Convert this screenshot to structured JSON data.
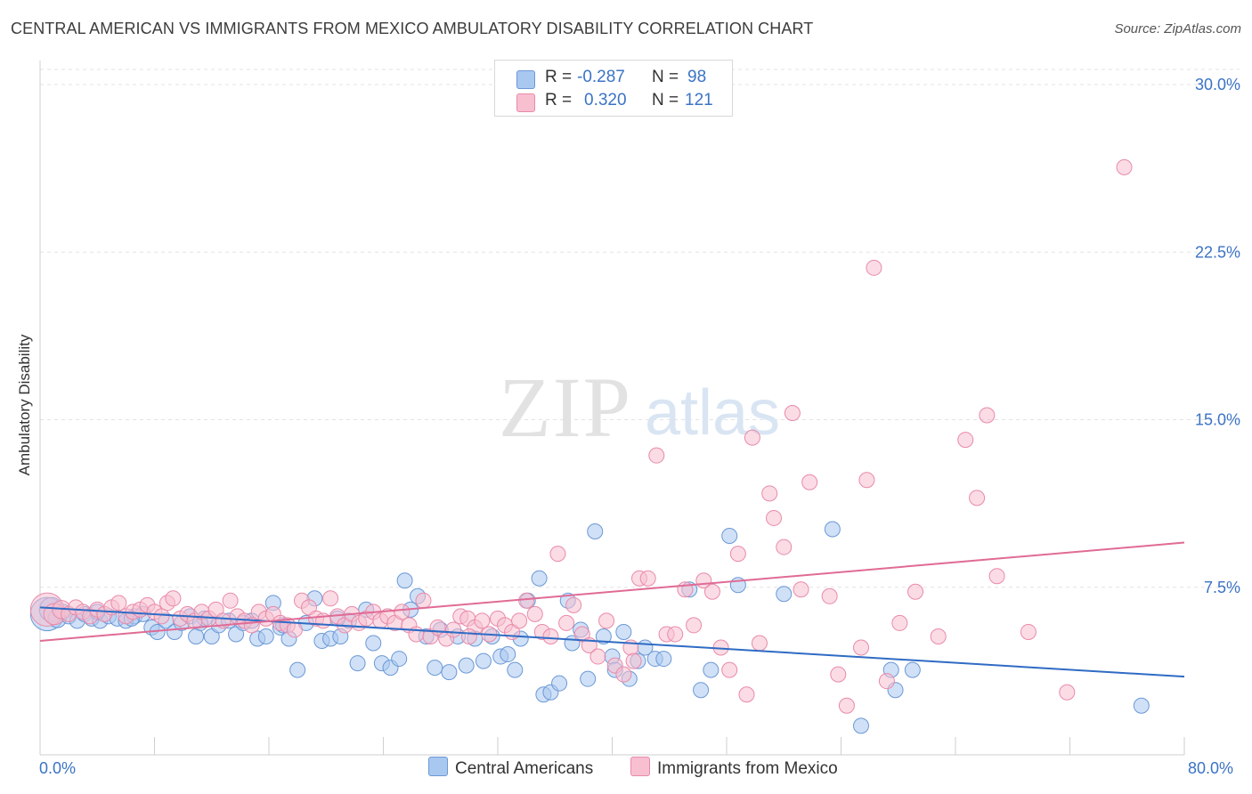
{
  "title": "CENTRAL AMERICAN VS IMMIGRANTS FROM MEXICO AMBULATORY DISABILITY CORRELATION CHART",
  "source": "Source: ZipAtlas.com",
  "watermark": {
    "zip": "ZIP",
    "atlas": "atlas"
  },
  "legend_top": {
    "rows": [
      {
        "r_label": "R =",
        "r_value": "-0.287",
        "n_label": "N =",
        "n_value": "98",
        "color": "#a9c8f0",
        "border": "#6b98d6"
      },
      {
        "r_label": "R =",
        "r_value": "0.320",
        "n_label": "N =",
        "n_value": "121",
        "color": "#f8bfd0",
        "border": "#e98aa9"
      }
    ]
  },
  "legend_bottom": [
    {
      "label": "Central Americans",
      "color": "#a9c8f0",
      "border": "#6b98d6"
    },
    {
      "label": "Immigrants from Mexico",
      "color": "#f8bfd0",
      "border": "#e98aa9"
    }
  ],
  "chart_data": {
    "type": "scatter",
    "title": "CENTRAL AMERICAN VS IMMIGRANTS FROM MEXICO AMBULATORY DISABILITY CORRELATION CHART",
    "xlabel": "",
    "ylabel": "Ambulatory Disability",
    "xlim": [
      0,
      80
    ],
    "ylim": [
      0,
      30
    ],
    "x_tick_labels": [
      "0.0%",
      "80.0%"
    ],
    "y_ticks": [
      7.5,
      15.0,
      22.5,
      30.0
    ],
    "y_tick_labels": [
      "7.5%",
      "15.0%",
      "22.5%",
      "30.0%"
    ],
    "grid": "horizontal dashed",
    "legend_placement": "top-center and bottom",
    "series": [
      {
        "name": "Central Americans",
        "color": "#6b98d6",
        "fill": "#a9c8f0",
        "trend": {
          "x": [
            0,
            80
          ],
          "y": [
            6.6,
            3.5
          ]
        },
        "points": [
          [
            0.5,
            6.3,
            2.2
          ],
          [
            0.8,
            6.5,
            1.6
          ],
          [
            1.2,
            6.1,
            1.2
          ],
          [
            1.6,
            6.4,
            1
          ],
          [
            2.0,
            6.2,
            1
          ],
          [
            2.6,
            6.0,
            1
          ],
          [
            3.1,
            6.3,
            1
          ],
          [
            3.6,
            6.1,
            1
          ],
          [
            4.2,
            6.0,
            1
          ],
          [
            4.8,
            6.2,
            1
          ],
          [
            5.4,
            6.1,
            1
          ],
          [
            6.0,
            6.0,
            1
          ],
          [
            6.6,
            6.2,
            1
          ],
          [
            7.2,
            6.3,
            1
          ],
          [
            7.8,
            5.7,
            1
          ],
          [
            8.2,
            5.5,
            1
          ],
          [
            8.8,
            6.0,
            1
          ],
          [
            9.4,
            5.5,
            1
          ],
          [
            9.9,
            5.9,
            1
          ],
          [
            10.5,
            6.2,
            1
          ],
          [
            10.9,
            5.3,
            1
          ],
          [
            11.5,
            6.1,
            1
          ],
          [
            12.0,
            5.3,
            1
          ],
          [
            12.5,
            5.8,
            1
          ],
          [
            13.2,
            6.0,
            1
          ],
          [
            13.7,
            5.4,
            1
          ],
          [
            14.2,
            5.9,
            1
          ],
          [
            14.8,
            6.0,
            1
          ],
          [
            15.2,
            5.2,
            1
          ],
          [
            15.8,
            5.3,
            1
          ],
          [
            16.3,
            6.8,
            1
          ],
          [
            16.8,
            5.7,
            1
          ],
          [
            17.4,
            5.2,
            1
          ],
          [
            18.0,
            3.8,
            1
          ],
          [
            18.6,
            5.9,
            1
          ],
          [
            19.2,
            7.0,
            1
          ],
          [
            19.7,
            5.1,
            1
          ],
          [
            20.3,
            5.2,
            1
          ],
          [
            21.0,
            5.3,
            1
          ],
          [
            21.6,
            6.0,
            1
          ],
          [
            22.2,
            4.1,
            1
          ],
          [
            22.8,
            6.5,
            1
          ],
          [
            23.3,
            5.0,
            1
          ],
          [
            23.9,
            4.1,
            1
          ],
          [
            24.5,
            3.9,
            1
          ],
          [
            25.1,
            4.3,
            1
          ],
          [
            25.5,
            7.8,
            1
          ],
          [
            25.9,
            6.5,
            1
          ],
          [
            26.4,
            7.1,
            1
          ],
          [
            27.0,
            5.3,
            1
          ],
          [
            27.6,
            3.9,
            1
          ],
          [
            28.0,
            5.6,
            1
          ],
          [
            28.6,
            3.7,
            1
          ],
          [
            29.2,
            5.3,
            1
          ],
          [
            29.8,
            4.0,
            1
          ],
          [
            30.4,
            5.2,
            1
          ],
          [
            31.0,
            4.2,
            1
          ],
          [
            31.6,
            5.3,
            1
          ],
          [
            32.2,
            4.4,
            1
          ],
          [
            32.7,
            4.5,
            1
          ],
          [
            33.2,
            3.8,
            1
          ],
          [
            33.6,
            5.2,
            1
          ],
          [
            34.1,
            6.9,
            1
          ],
          [
            34.9,
            7.9,
            1
          ],
          [
            35.2,
            2.7,
            1
          ],
          [
            35.7,
            2.8,
            1
          ],
          [
            36.3,
            3.2,
            1
          ],
          [
            36.9,
            6.9,
            1
          ],
          [
            37.2,
            5.0,
            1
          ],
          [
            37.8,
            5.6,
            1
          ],
          [
            38.3,
            3.4,
            1
          ],
          [
            38.8,
            10.0,
            1
          ],
          [
            39.4,
            5.3,
            1
          ],
          [
            40.0,
            4.4,
            1
          ],
          [
            40.2,
            3.8,
            1
          ],
          [
            40.8,
            5.5,
            1
          ],
          [
            41.2,
            3.4,
            1
          ],
          [
            41.8,
            4.2,
            1
          ],
          [
            42.3,
            4.8,
            1
          ],
          [
            43.0,
            4.3,
            1
          ],
          [
            43.6,
            4.3,
            1
          ],
          [
            45.4,
            7.4,
            1
          ],
          [
            46.2,
            2.9,
            1
          ],
          [
            46.9,
            3.8,
            1
          ],
          [
            48.2,
            9.8,
            1
          ],
          [
            48.8,
            7.6,
            1
          ],
          [
            52.0,
            7.2,
            1
          ],
          [
            55.4,
            10.1,
            1
          ],
          [
            57.4,
            1.3,
            1
          ],
          [
            59.5,
            3.8,
            1
          ],
          [
            59.8,
            2.9,
            1
          ],
          [
            61.0,
            3.8,
            1
          ],
          [
            77.0,
            2.2,
            1
          ],
          [
            4.0,
            6.4,
            1
          ],
          [
            6.4,
            6.1,
            1
          ],
          [
            11.2,
            5.9,
            1
          ],
          [
            17.0,
            5.8,
            1
          ],
          [
            20.8,
            6.1,
            1
          ]
        ]
      },
      {
        "name": "Immigrants from Mexico",
        "color": "#e98aa9",
        "fill": "#f8bfd0",
        "trend": {
          "x": [
            0,
            80
          ],
          "y": [
            5.1,
            9.5
          ]
        },
        "points": [
          [
            0.5,
            6.5,
            2.2
          ],
          [
            1.0,
            6.3,
            1.4
          ],
          [
            1.5,
            6.5,
            1.2
          ],
          [
            2.0,
            6.3,
            1
          ],
          [
            2.5,
            6.6,
            1
          ],
          [
            3.0,
            6.4,
            1
          ],
          [
            3.5,
            6.2,
            1
          ],
          [
            4.0,
            6.5,
            1
          ],
          [
            4.5,
            6.3,
            1
          ],
          [
            5.0,
            6.6,
            1
          ],
          [
            5.5,
            6.8,
            1
          ],
          [
            6.0,
            6.2,
            1
          ],
          [
            6.5,
            6.4,
            1
          ],
          [
            7.0,
            6.5,
            1
          ],
          [
            7.5,
            6.7,
            1
          ],
          [
            8.0,
            6.4,
            1
          ],
          [
            8.5,
            6.2,
            1
          ],
          [
            8.9,
            6.8,
            1
          ],
          [
            9.3,
            7.0,
            1
          ],
          [
            9.8,
            6.1,
            1
          ],
          [
            10.3,
            6.3,
            1
          ],
          [
            10.8,
            6.0,
            1
          ],
          [
            11.3,
            6.4,
            1
          ],
          [
            11.8,
            6.1,
            1
          ],
          [
            12.3,
            6.5,
            1
          ],
          [
            12.8,
            6.0,
            1
          ],
          [
            13.3,
            6.9,
            1
          ],
          [
            13.8,
            6.2,
            1
          ],
          [
            14.3,
            6.0,
            1
          ],
          [
            14.8,
            5.8,
            1
          ],
          [
            15.3,
            6.4,
            1
          ],
          [
            15.8,
            6.1,
            1
          ],
          [
            16.3,
            6.3,
            1
          ],
          [
            16.8,
            5.9,
            1
          ],
          [
            17.3,
            5.8,
            1
          ],
          [
            17.8,
            5.6,
            1
          ],
          [
            18.3,
            6.9,
            1
          ],
          [
            18.8,
            6.6,
            1
          ],
          [
            19.3,
            6.1,
            1
          ],
          [
            19.8,
            6.0,
            1
          ],
          [
            20.3,
            7.0,
            1
          ],
          [
            20.8,
            6.2,
            1
          ],
          [
            21.3,
            5.8,
            1
          ],
          [
            21.8,
            6.3,
            1
          ],
          [
            22.3,
            5.9,
            1
          ],
          [
            22.8,
            6.1,
            1
          ],
          [
            23.3,
            6.4,
            1
          ],
          [
            23.8,
            6.0,
            1
          ],
          [
            24.3,
            6.2,
            1
          ],
          [
            24.8,
            5.9,
            1
          ],
          [
            25.3,
            6.4,
            1
          ],
          [
            25.8,
            5.8,
            1
          ],
          [
            26.3,
            5.4,
            1
          ],
          [
            26.8,
            6.9,
            1
          ],
          [
            27.3,
            5.3,
            1
          ],
          [
            27.8,
            5.7,
            1
          ],
          [
            28.4,
            5.2,
            1
          ],
          [
            28.9,
            5.6,
            1
          ],
          [
            29.4,
            6.2,
            1
          ],
          [
            29.9,
            6.1,
            1
          ],
          [
            30.4,
            5.7,
            1
          ],
          [
            30.9,
            6.0,
            1
          ],
          [
            31.4,
            5.4,
            1
          ],
          [
            32.0,
            6.1,
            1
          ],
          [
            32.5,
            5.8,
            1
          ],
          [
            33.0,
            5.5,
            1
          ],
          [
            33.5,
            6.0,
            1
          ],
          [
            34.0,
            6.9,
            1
          ],
          [
            34.6,
            6.3,
            1
          ],
          [
            35.1,
            5.5,
            1
          ],
          [
            35.7,
            5.3,
            1
          ],
          [
            36.2,
            9.0,
            1
          ],
          [
            36.8,
            5.9,
            1
          ],
          [
            37.3,
            6.7,
            1
          ],
          [
            37.9,
            5.4,
            1
          ],
          [
            38.4,
            4.9,
            1
          ],
          [
            39.0,
            4.4,
            1
          ],
          [
            39.6,
            6.0,
            1
          ],
          [
            40.2,
            4.0,
            1
          ],
          [
            40.8,
            3.6,
            1
          ],
          [
            41.3,
            4.8,
            1
          ],
          [
            41.9,
            7.9,
            1
          ],
          [
            42.5,
            7.9,
            1
          ],
          [
            43.1,
            13.4,
            1
          ],
          [
            43.8,
            5.4,
            1
          ],
          [
            44.4,
            5.4,
            1
          ],
          [
            45.1,
            7.4,
            1
          ],
          [
            45.7,
            5.8,
            1
          ],
          [
            46.4,
            7.8,
            1
          ],
          [
            47.0,
            7.3,
            1
          ],
          [
            47.6,
            4.8,
            1
          ],
          [
            48.2,
            3.8,
            1
          ],
          [
            48.8,
            9.0,
            1
          ],
          [
            49.4,
            2.7,
            1
          ],
          [
            49.8,
            14.2,
            1
          ],
          [
            50.3,
            5.0,
            1
          ],
          [
            51.0,
            11.7,
            1
          ],
          [
            51.3,
            10.6,
            1
          ],
          [
            52.0,
            9.3,
            1
          ],
          [
            52.6,
            15.3,
            1
          ],
          [
            53.2,
            7.4,
            1
          ],
          [
            53.8,
            12.2,
            1
          ],
          [
            55.2,
            7.1,
            1
          ],
          [
            55.8,
            3.6,
            1
          ],
          [
            56.4,
            2.2,
            1
          ],
          [
            57.4,
            4.8,
            1
          ],
          [
            57.8,
            12.3,
            1
          ],
          [
            58.3,
            21.8,
            1
          ],
          [
            60.1,
            5.9,
            1
          ],
          [
            61.2,
            7.3,
            1
          ],
          [
            62.8,
            5.3,
            1
          ],
          [
            64.7,
            14.1,
            1
          ],
          [
            65.5,
            11.5,
            1
          ],
          [
            66.2,
            15.2,
            1
          ],
          [
            66.9,
            8.0,
            1
          ],
          [
            69.1,
            5.5,
            1
          ],
          [
            71.8,
            2.8,
            1
          ],
          [
            75.8,
            26.3,
            1
          ],
          [
            59.2,
            3.3,
            1
          ],
          [
            41.5,
            4.2,
            1
          ],
          [
            30.0,
            5.3,
            1
          ]
        ]
      }
    ]
  }
}
